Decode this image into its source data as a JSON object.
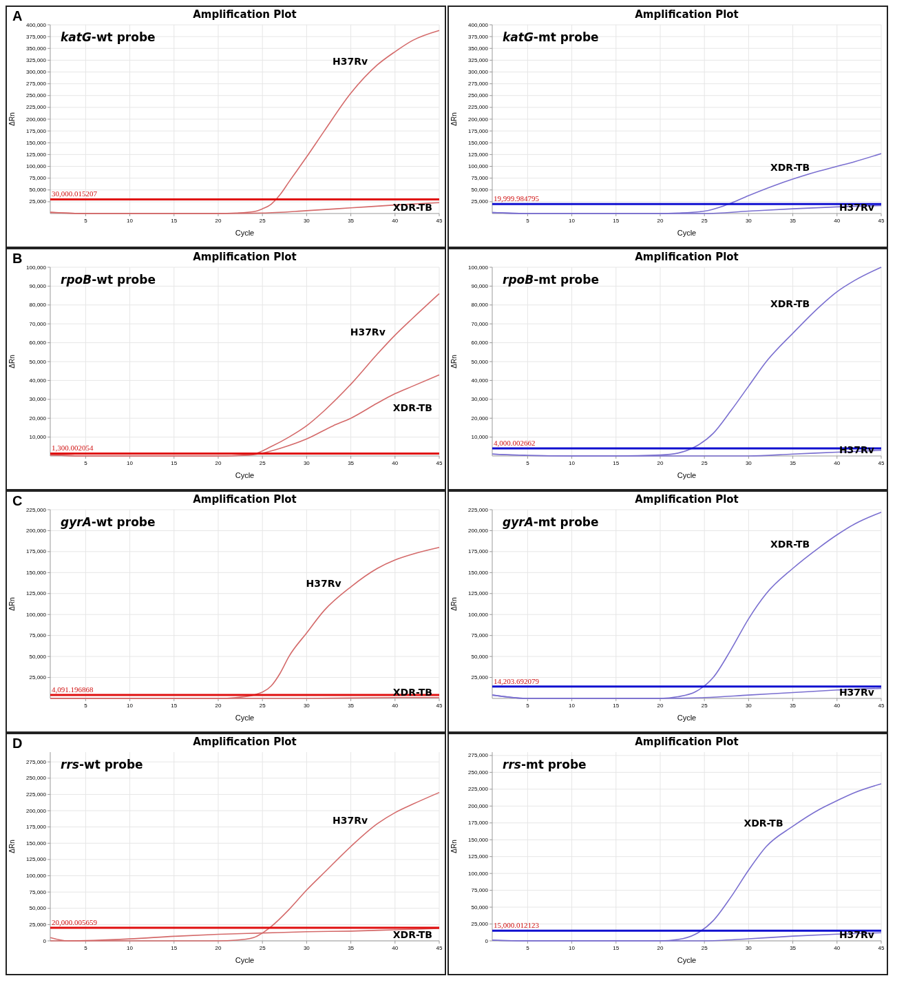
{
  "chart_data": [
    {
      "type": "line",
      "title": "Amplification Plot",
      "xlabel": "Cycle",
      "ylabel": "ΔRn",
      "annotations": [
        "A",
        "katG-wt probe"
      ],
      "xlim": [
        1,
        45
      ],
      "xticks": [
        5,
        10,
        15,
        20,
        25,
        30,
        35,
        40,
        45
      ],
      "ylim": [
        0,
        400000
      ],
      "yticks": [
        {
          "value": 25000,
          "label": "25,000"
        },
        {
          "value": 50000,
          "label": "50,000"
        },
        {
          "value": 75000,
          "label": "75,000"
        },
        {
          "value": 100000,
          "label": "100,000"
        },
        {
          "value": 125000,
          "label": "125,000"
        },
        {
          "value": 150000,
          "label": "150,000"
        },
        {
          "value": 175000,
          "label": "175,000"
        },
        {
          "value": 200000,
          "label": "200,000"
        },
        {
          "value": 225000,
          "label": "225,000"
        },
        {
          "value": 250000,
          "label": "250,000"
        },
        {
          "value": 275000,
          "label": "275,000"
        },
        {
          "value": 300000,
          "label": "300,000"
        },
        {
          "value": 325000,
          "label": "325,000"
        },
        {
          "value": 350000,
          "label": "350,000"
        },
        {
          "value": 375000,
          "label": "375,000"
        },
        {
          "value": 400000,
          "label": "400,000"
        }
      ],
      "grid": true,
      "marker": "none",
      "line_style": "solid",
      "ref_lines": [
        {
          "axis": "y",
          "value": 30000.015207,
          "label": "30,000.015207",
          "color": "#e01010"
        }
      ],
      "series": [
        {
          "name": "H37Rv",
          "color": "#d46a6a",
          "x": [
            1,
            5,
            10,
            15,
            20,
            22,
            24,
            25,
            26,
            27,
            28,
            30,
            32,
            35,
            38,
            40,
            42,
            45
          ],
          "values": [
            2000,
            0,
            0,
            0,
            0,
            1000,
            4000,
            10000,
            20000,
            40000,
            67000,
            120000,
            175000,
            255000,
            315000,
            343000,
            367000,
            388000
          ]
        },
        {
          "name": "XDR-TB",
          "color": "#d46a6a",
          "x": [
            1,
            5,
            10,
            15,
            20,
            25,
            30,
            35,
            40,
            45
          ],
          "values": [
            3000,
            0,
            0,
            0,
            0,
            1000,
            6000,
            12000,
            18000,
            23000
          ]
        }
      ]
    },
    {
      "type": "line",
      "title": "Amplification Plot",
      "xlabel": "Cycle",
      "ylabel": "ΔRn",
      "annotations": [
        "katG-mt probe"
      ],
      "xlim": [
        1,
        45
      ],
      "xticks": [
        5,
        10,
        15,
        20,
        25,
        30,
        35,
        40,
        45
      ],
      "ylim": [
        0,
        400000
      ],
      "yticks": [
        {
          "value": 25000,
          "label": "25,000"
        },
        {
          "value": 50000,
          "label": "50,000"
        },
        {
          "value": 75000,
          "label": "75,000"
        },
        {
          "value": 100000,
          "label": "100,000"
        },
        {
          "value": 125000,
          "label": "125,000"
        },
        {
          "value": 150000,
          "label": "150,000"
        },
        {
          "value": 175000,
          "label": "175,000"
        },
        {
          "value": 200000,
          "label": "200,000"
        },
        {
          "value": 225000,
          "label": "225,000"
        },
        {
          "value": 250000,
          "label": "250,000"
        },
        {
          "value": 275000,
          "label": "275,000"
        },
        {
          "value": 300000,
          "label": "300,000"
        },
        {
          "value": 325000,
          "label": "325,000"
        },
        {
          "value": 350000,
          "label": "350,000"
        },
        {
          "value": 375000,
          "label": "375,000"
        },
        {
          "value": 400000,
          "label": "400,000"
        }
      ],
      "grid": true,
      "marker": "none",
      "line_style": "solid",
      "ref_lines": [
        {
          "axis": "y",
          "value": 19999.984795,
          "label": "19,999.984795",
          "color": "#1010d0"
        }
      ],
      "series": [
        {
          "name": "XDR-TB",
          "color": "#7a6fd0",
          "x": [
            1,
            5,
            10,
            15,
            20,
            22,
            25,
            27,
            28,
            30,
            33,
            35,
            38,
            40,
            42,
            45
          ],
          "values": [
            2000,
            0,
            0,
            0,
            0,
            1000,
            5000,
            15000,
            22000,
            38000,
            60000,
            73000,
            90000,
            100000,
            110000,
            127000
          ]
        },
        {
          "name": "H37Rv",
          "color": "#7a6fd0",
          "x": [
            1,
            5,
            10,
            15,
            20,
            25,
            30,
            35,
            40,
            45
          ],
          "values": [
            2000,
            0,
            0,
            0,
            0,
            0,
            5000,
            10000,
            14000,
            17000
          ]
        }
      ]
    },
    {
      "type": "line",
      "title": "Amplification Plot",
      "xlabel": "Cycle",
      "ylabel": "ΔRn",
      "annotations": [
        "B",
        "rpoB-wt probe"
      ],
      "xlim": [
        1,
        45
      ],
      "xticks": [
        5,
        10,
        15,
        20,
        25,
        30,
        35,
        40,
        45
      ],
      "ylim": [
        0,
        100000
      ],
      "yticks": [
        {
          "value": 10000,
          "label": "10,000"
        },
        {
          "value": 20000,
          "label": "20,000"
        },
        {
          "value": 30000,
          "label": "30,000"
        },
        {
          "value": 40000,
          "label": "40,000"
        },
        {
          "value": 50000,
          "label": "50,000"
        },
        {
          "value": 60000,
          "label": "60,000"
        },
        {
          "value": 70000,
          "label": "70,000"
        },
        {
          "value": 80000,
          "label": "80,000"
        },
        {
          "value": 90000,
          "label": "90,000"
        },
        {
          "value": 100000,
          "label": "100,000"
        }
      ],
      "grid": true,
      "marker": "none",
      "line_style": "solid",
      "ref_lines": [
        {
          "axis": "y",
          "value": 1300.002054,
          "label": "1,300.002054",
          "color": "#e01010"
        }
      ],
      "series": [
        {
          "name": "H37Rv",
          "color": "#d46a6a",
          "x": [
            1,
            5,
            10,
            15,
            20,
            22,
            24,
            26,
            28,
            30,
            32,
            35,
            38,
            40,
            42,
            45
          ],
          "values": [
            500,
            0,
            0,
            0,
            0,
            200,
            1000,
            5000,
            10000,
            16000,
            24000,
            38000,
            54000,
            64000,
            73000,
            86000
          ]
        },
        {
          "name": "XDR-TB",
          "color": "#d46a6a",
          "x": [
            1,
            5,
            10,
            15,
            20,
            23,
            25,
            27,
            30,
            33,
            35,
            38,
            40,
            42,
            45
          ],
          "values": [
            500,
            0,
            0,
            0,
            0,
            300,
            1500,
            4000,
            9000,
            16000,
            20000,
            28000,
            33000,
            37000,
            43000
          ]
        }
      ]
    },
    {
      "type": "line",
      "title": "Amplification Plot",
      "xlabel": "Cycle",
      "ylabel": "ΔRn",
      "annotations": [
        "rpoB-mt probe"
      ],
      "xlim": [
        1,
        45
      ],
      "xticks": [
        5,
        10,
        15,
        20,
        25,
        30,
        35,
        40,
        45
      ],
      "ylim": [
        0,
        100000
      ],
      "yticks": [
        {
          "value": 10000,
          "label": "10,000"
        },
        {
          "value": 20000,
          "label": "20,000"
        },
        {
          "value": 30000,
          "label": "30,000"
        },
        {
          "value": 40000,
          "label": "40,000"
        },
        {
          "value": 50000,
          "label": "50,000"
        },
        {
          "value": 60000,
          "label": "60,000"
        },
        {
          "value": 70000,
          "label": "70,000"
        },
        {
          "value": 80000,
          "label": "80,000"
        },
        {
          "value": 90000,
          "label": "90,000"
        },
        {
          "value": 100000,
          "label": "100,000"
        }
      ],
      "grid": true,
      "marker": "none",
      "line_style": "solid",
      "ref_lines": [
        {
          "axis": "y",
          "value": 4000.002662,
          "label": "4,000.002662",
          "color": "#1010d0"
        }
      ],
      "series": [
        {
          "name": "XDR-TB",
          "color": "#7a6fd0",
          "x": [
            1,
            5,
            10,
            15,
            20,
            22,
            24,
            26,
            28,
            30,
            32,
            35,
            38,
            40,
            42,
            45
          ],
          "values": [
            1000,
            300,
            0,
            0,
            500,
            1500,
            5000,
            12000,
            24000,
            37000,
            50000,
            65000,
            79000,
            87000,
            93000,
            100000
          ]
        },
        {
          "name": "H37Rv",
          "color": "#7a6fd0",
          "x": [
            1,
            5,
            10,
            15,
            20,
            25,
            30,
            35,
            40,
            45
          ],
          "values": [
            1000,
            300,
            0,
            0,
            0,
            0,
            0,
            1000,
            2000,
            3000
          ]
        }
      ]
    },
    {
      "type": "line",
      "title": "Amplification Plot",
      "xlabel": "Cycle",
      "ylabel": "ΔRn",
      "annotations": [
        "C",
        "gyrA-wt probe"
      ],
      "xlim": [
        1,
        45
      ],
      "xticks": [
        5,
        10,
        15,
        20,
        25,
        30,
        35,
        40,
        45
      ],
      "ylim": [
        0,
        225000
      ],
      "yticks": [
        {
          "value": 25000,
          "label": "25,000"
        },
        {
          "value": 50000,
          "label": "50,000"
        },
        {
          "value": 75000,
          "label": "75,000"
        },
        {
          "value": 100000,
          "label": "100,000"
        },
        {
          "value": 125000,
          "label": "125,000"
        },
        {
          "value": 150000,
          "label": "150,000"
        },
        {
          "value": 175000,
          "label": "175,000"
        },
        {
          "value": 200000,
          "label": "200,000"
        },
        {
          "value": 225000,
          "label": "225,000"
        }
      ],
      "grid": true,
      "marker": "none",
      "line_style": "solid",
      "ref_lines": [
        {
          "axis": "y",
          "value": 4091.196868,
          "label": "4,091.196868",
          "color": "#e01010"
        }
      ],
      "series": [
        {
          "name": "H37Rv",
          "color": "#d46a6a",
          "x": [
            1,
            5,
            10,
            15,
            20,
            22,
            24,
            26,
            27,
            28,
            30,
            32,
            35,
            38,
            40,
            42,
            45
          ],
          "values": [
            0,
            0,
            0,
            0,
            0,
            1000,
            4000,
            15000,
            30000,
            50000,
            78000,
            105000,
            133000,
            155000,
            165000,
            172000,
            180000
          ]
        },
        {
          "name": "XDR-TB",
          "color": "#d46a6a",
          "x": [
            1,
            10,
            20,
            30,
            40,
            45
          ],
          "values": [
            0,
            0,
            0,
            0,
            1000,
            1000
          ]
        }
      ]
    },
    {
      "type": "line",
      "title": "Amplification Plot",
      "xlabel": "Cycle",
      "ylabel": "ΔRn",
      "annotations": [
        "gyrA-mt probe"
      ],
      "xlim": [
        1,
        45
      ],
      "xticks": [
        5,
        10,
        15,
        20,
        25,
        30,
        35,
        40,
        45
      ],
      "ylim": [
        0,
        225000
      ],
      "yticks": [
        {
          "value": 25000,
          "label": "25,000"
        },
        {
          "value": 50000,
          "label": "50,000"
        },
        {
          "value": 75000,
          "label": "75,000"
        },
        {
          "value": 100000,
          "label": "100,000"
        },
        {
          "value": 125000,
          "label": "125,000"
        },
        {
          "value": 150000,
          "label": "150,000"
        },
        {
          "value": 175000,
          "label": "175,000"
        },
        {
          "value": 200000,
          "label": "200,000"
        },
        {
          "value": 225000,
          "label": "225,000"
        }
      ],
      "grid": true,
      "marker": "none",
      "line_style": "solid",
      "ref_lines": [
        {
          "axis": "y",
          "value": 14203.692079,
          "label": "14,203.692079",
          "color": "#1010d0"
        }
      ],
      "series": [
        {
          "name": "XDR-TB",
          "color": "#7a6fd0",
          "x": [
            1,
            5,
            10,
            15,
            20,
            22,
            24,
            26,
            28,
            30,
            32,
            35,
            38,
            40,
            42,
            45
          ],
          "values": [
            4000,
            0,
            0,
            0,
            0,
            2000,
            8000,
            25000,
            58000,
            95000,
            125000,
            155000,
            180000,
            195000,
            208000,
            222000
          ]
        },
        {
          "name": "H37Rv",
          "color": "#7a6fd0",
          "x": [
            1,
            5,
            10,
            15,
            20,
            25,
            30,
            35,
            40,
            45
          ],
          "values": [
            4000,
            0,
            0,
            0,
            0,
            1000,
            4000,
            7000,
            10000,
            12000
          ]
        }
      ]
    },
    {
      "type": "line",
      "title": "Amplification Plot",
      "xlabel": "Cycle",
      "ylabel": "ΔRn",
      "annotations": [
        "D",
        "rrs-wt probe"
      ],
      "xlim": [
        1,
        45
      ],
      "xticks": [
        5,
        10,
        15,
        20,
        25,
        30,
        35,
        40,
        45
      ],
      "ylim": [
        0,
        290000
      ],
      "yticks": [
        0,
        {
          "value": 25000,
          "label": "25,000"
        },
        {
          "value": 50000,
          "label": "50,000"
        },
        {
          "value": 75000,
          "label": "75,000"
        },
        {
          "value": 100000,
          "label": "100,000"
        },
        {
          "value": 125000,
          "label": "125,000"
        },
        {
          "value": 150000,
          "label": "150,000"
        },
        {
          "value": 175000,
          "label": "175,000"
        },
        {
          "value": 200000,
          "label": "200,000"
        },
        {
          "value": 225000,
          "label": "225,000"
        },
        {
          "value": 250000,
          "label": "250,000"
        },
        {
          "value": 275000,
          "label": "275,000"
        }
      ],
      "grid": true,
      "marker": "none",
      "line_style": "solid",
      "ref_lines": [
        {
          "axis": "y",
          "value": 20000.005659,
          "label": "20,000.005659",
          "color": "#e01010"
        }
      ],
      "series": [
        {
          "name": "H37Rv",
          "color": "#d46a6a",
          "x": [
            1,
            5,
            10,
            15,
            20,
            22,
            24,
            25,
            26,
            28,
            30,
            32,
            35,
            38,
            40,
            42,
            45
          ],
          "values": [
            0,
            0,
            0,
            0,
            0,
            1000,
            5000,
            12000,
            22000,
            48000,
            78000,
            105000,
            145000,
            180000,
            197000,
            210000,
            228000
          ]
        },
        {
          "name": "XDR-TB",
          "color": "#d46a6a",
          "x": [
            1,
            3,
            10,
            15,
            20,
            25,
            30,
            35,
            40,
            45
          ],
          "values": [
            5000,
            0,
            3000,
            7000,
            10000,
            12000,
            14000,
            15000,
            17000,
            19000
          ]
        }
      ]
    },
    {
      "type": "line",
      "title": "Amplification Plot",
      "xlabel": "Cycle",
      "ylabel": "ΔRn",
      "annotations": [
        "rrs-mt probe"
      ],
      "xlim": [
        1,
        45
      ],
      "xticks": [
        5,
        10,
        15,
        20,
        25,
        30,
        35,
        40,
        45
      ],
      "ylim": [
        0,
        280000
      ],
      "yticks": [
        0,
        {
          "value": 25000,
          "label": "25,000"
        },
        {
          "value": 50000,
          "label": "50,000"
        },
        {
          "value": 75000,
          "label": "75,000"
        },
        {
          "value": 100000,
          "label": "100,000"
        },
        {
          "value": 125000,
          "label": "125,000"
        },
        {
          "value": 150000,
          "label": "150,000"
        },
        {
          "value": 175000,
          "label": "175,000"
        },
        {
          "value": 200000,
          "label": "200,000"
        },
        {
          "value": 225000,
          "label": "225,000"
        },
        {
          "value": 250000,
          "label": "250,000"
        },
        {
          "value": 275000,
          "label": "275,000"
        }
      ],
      "grid": true,
      "marker": "none",
      "line_style": "solid",
      "ref_lines": [
        {
          "axis": "y",
          "value": 15000.012123,
          "label": "15,000.012123",
          "color": "#1010d0"
        }
      ],
      "series": [
        {
          "name": "XDR-TB",
          "color": "#7a6fd0",
          "x": [
            1,
            5,
            10,
            15,
            20,
            22,
            24,
            26,
            28,
            30,
            32,
            35,
            38,
            40,
            42,
            45
          ],
          "values": [
            1000,
            0,
            0,
            0,
            0,
            2000,
            10000,
            30000,
            65000,
            105000,
            140000,
            170000,
            195000,
            208000,
            220000,
            233000
          ]
        },
        {
          "name": "H37Rv",
          "color": "#7a6fd0",
          "x": [
            1,
            5,
            10,
            15,
            20,
            25,
            30,
            35,
            40,
            45
          ],
          "values": [
            1000,
            0,
            0,
            0,
            0,
            0,
            3000,
            7000,
            10000,
            12000
          ]
        }
      ]
    }
  ]
}
